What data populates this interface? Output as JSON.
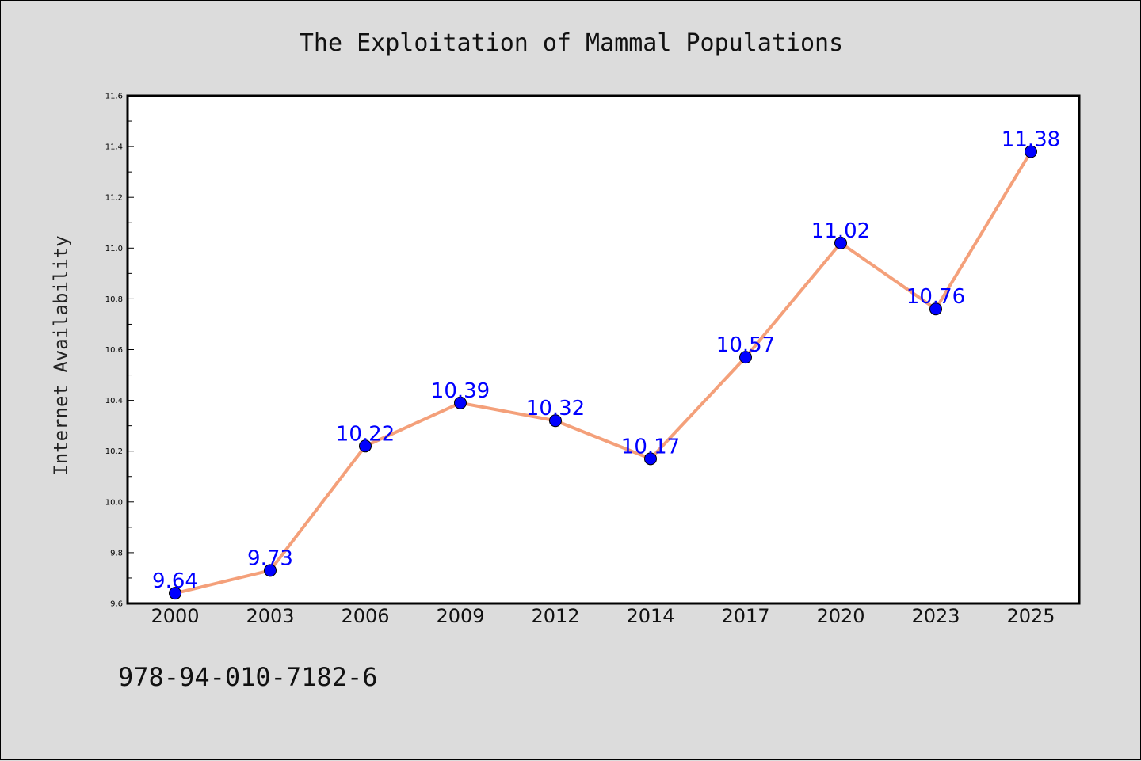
{
  "chart_data": {
    "type": "line",
    "title": "The Exploitation of Mammal Populations",
    "xlabel": "",
    "ylabel": "Internet Availability",
    "categories": [
      "2000",
      "2003",
      "2006",
      "2009",
      "2012",
      "2014",
      "2017",
      "2020",
      "2023",
      "2025"
    ],
    "series": [
      {
        "values": [
          9.64,
          9.73,
          10.22,
          10.39,
          10.32,
          10.17,
          10.57,
          11.02,
          10.76,
          11.38
        ],
        "labels": [
          "9.64",
          "9.73",
          "10.22",
          "10.39",
          "10.32",
          "10.17",
          "10.57",
          "11.02",
          "10.76",
          "11.38"
        ],
        "line_color": "#f4a07a",
        "marker_color": "#0000ff"
      }
    ],
    "ylim": [
      9.6,
      11.6
    ],
    "yticks": [
      "9.6",
      "9.8",
      "10.0",
      "10.2",
      "10.4",
      "10.6",
      "10.8",
      "11.0",
      "11.2",
      "11.4",
      "11.6"
    ],
    "grid": false,
    "background": "#dcdcdc",
    "plot_background": "#ffffff",
    "label_color": "#0000ff"
  },
  "footer": {
    "isbn": "978-94-010-7182-6"
  }
}
